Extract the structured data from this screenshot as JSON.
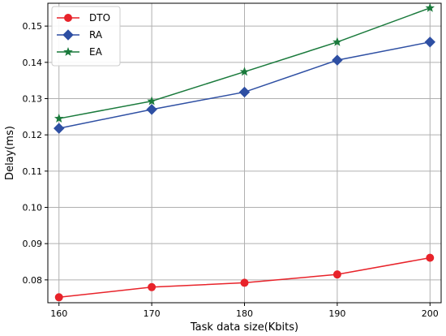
{
  "chart_data": {
    "type": "line",
    "title": "",
    "xlabel": "Task data size(Kbits)",
    "ylabel": "Delay(ms)",
    "x": [
      160,
      170,
      180,
      190,
      200
    ],
    "x_ticks": [
      "160",
      "170",
      "180",
      "190",
      "200"
    ],
    "y_ticks": [
      "0.08",
      "0.09",
      "0.10",
      "0.11",
      "0.12",
      "0.13",
      "0.14",
      "0.15"
    ],
    "xlim": [
      158.8,
      201.2
    ],
    "ylim": [
      0.0737,
      0.1563
    ],
    "grid": true,
    "legend_position": "top-left",
    "series": [
      {
        "name": "DTO",
        "values": [
          0.0752,
          0.078,
          0.0792,
          0.0815,
          0.0861
        ],
        "color": "#e8232a",
        "marker": "circle"
      },
      {
        "name": "RA",
        "values": [
          0.1218,
          0.127,
          0.1318,
          0.1406,
          0.1456
        ],
        "color": "#2e4fa3",
        "marker": "diamond"
      },
      {
        "name": "EA",
        "values": [
          0.1245,
          0.1293,
          0.1374,
          0.1456,
          0.155
        ],
        "color": "#1a7a3c",
        "marker": "star"
      }
    ]
  }
}
